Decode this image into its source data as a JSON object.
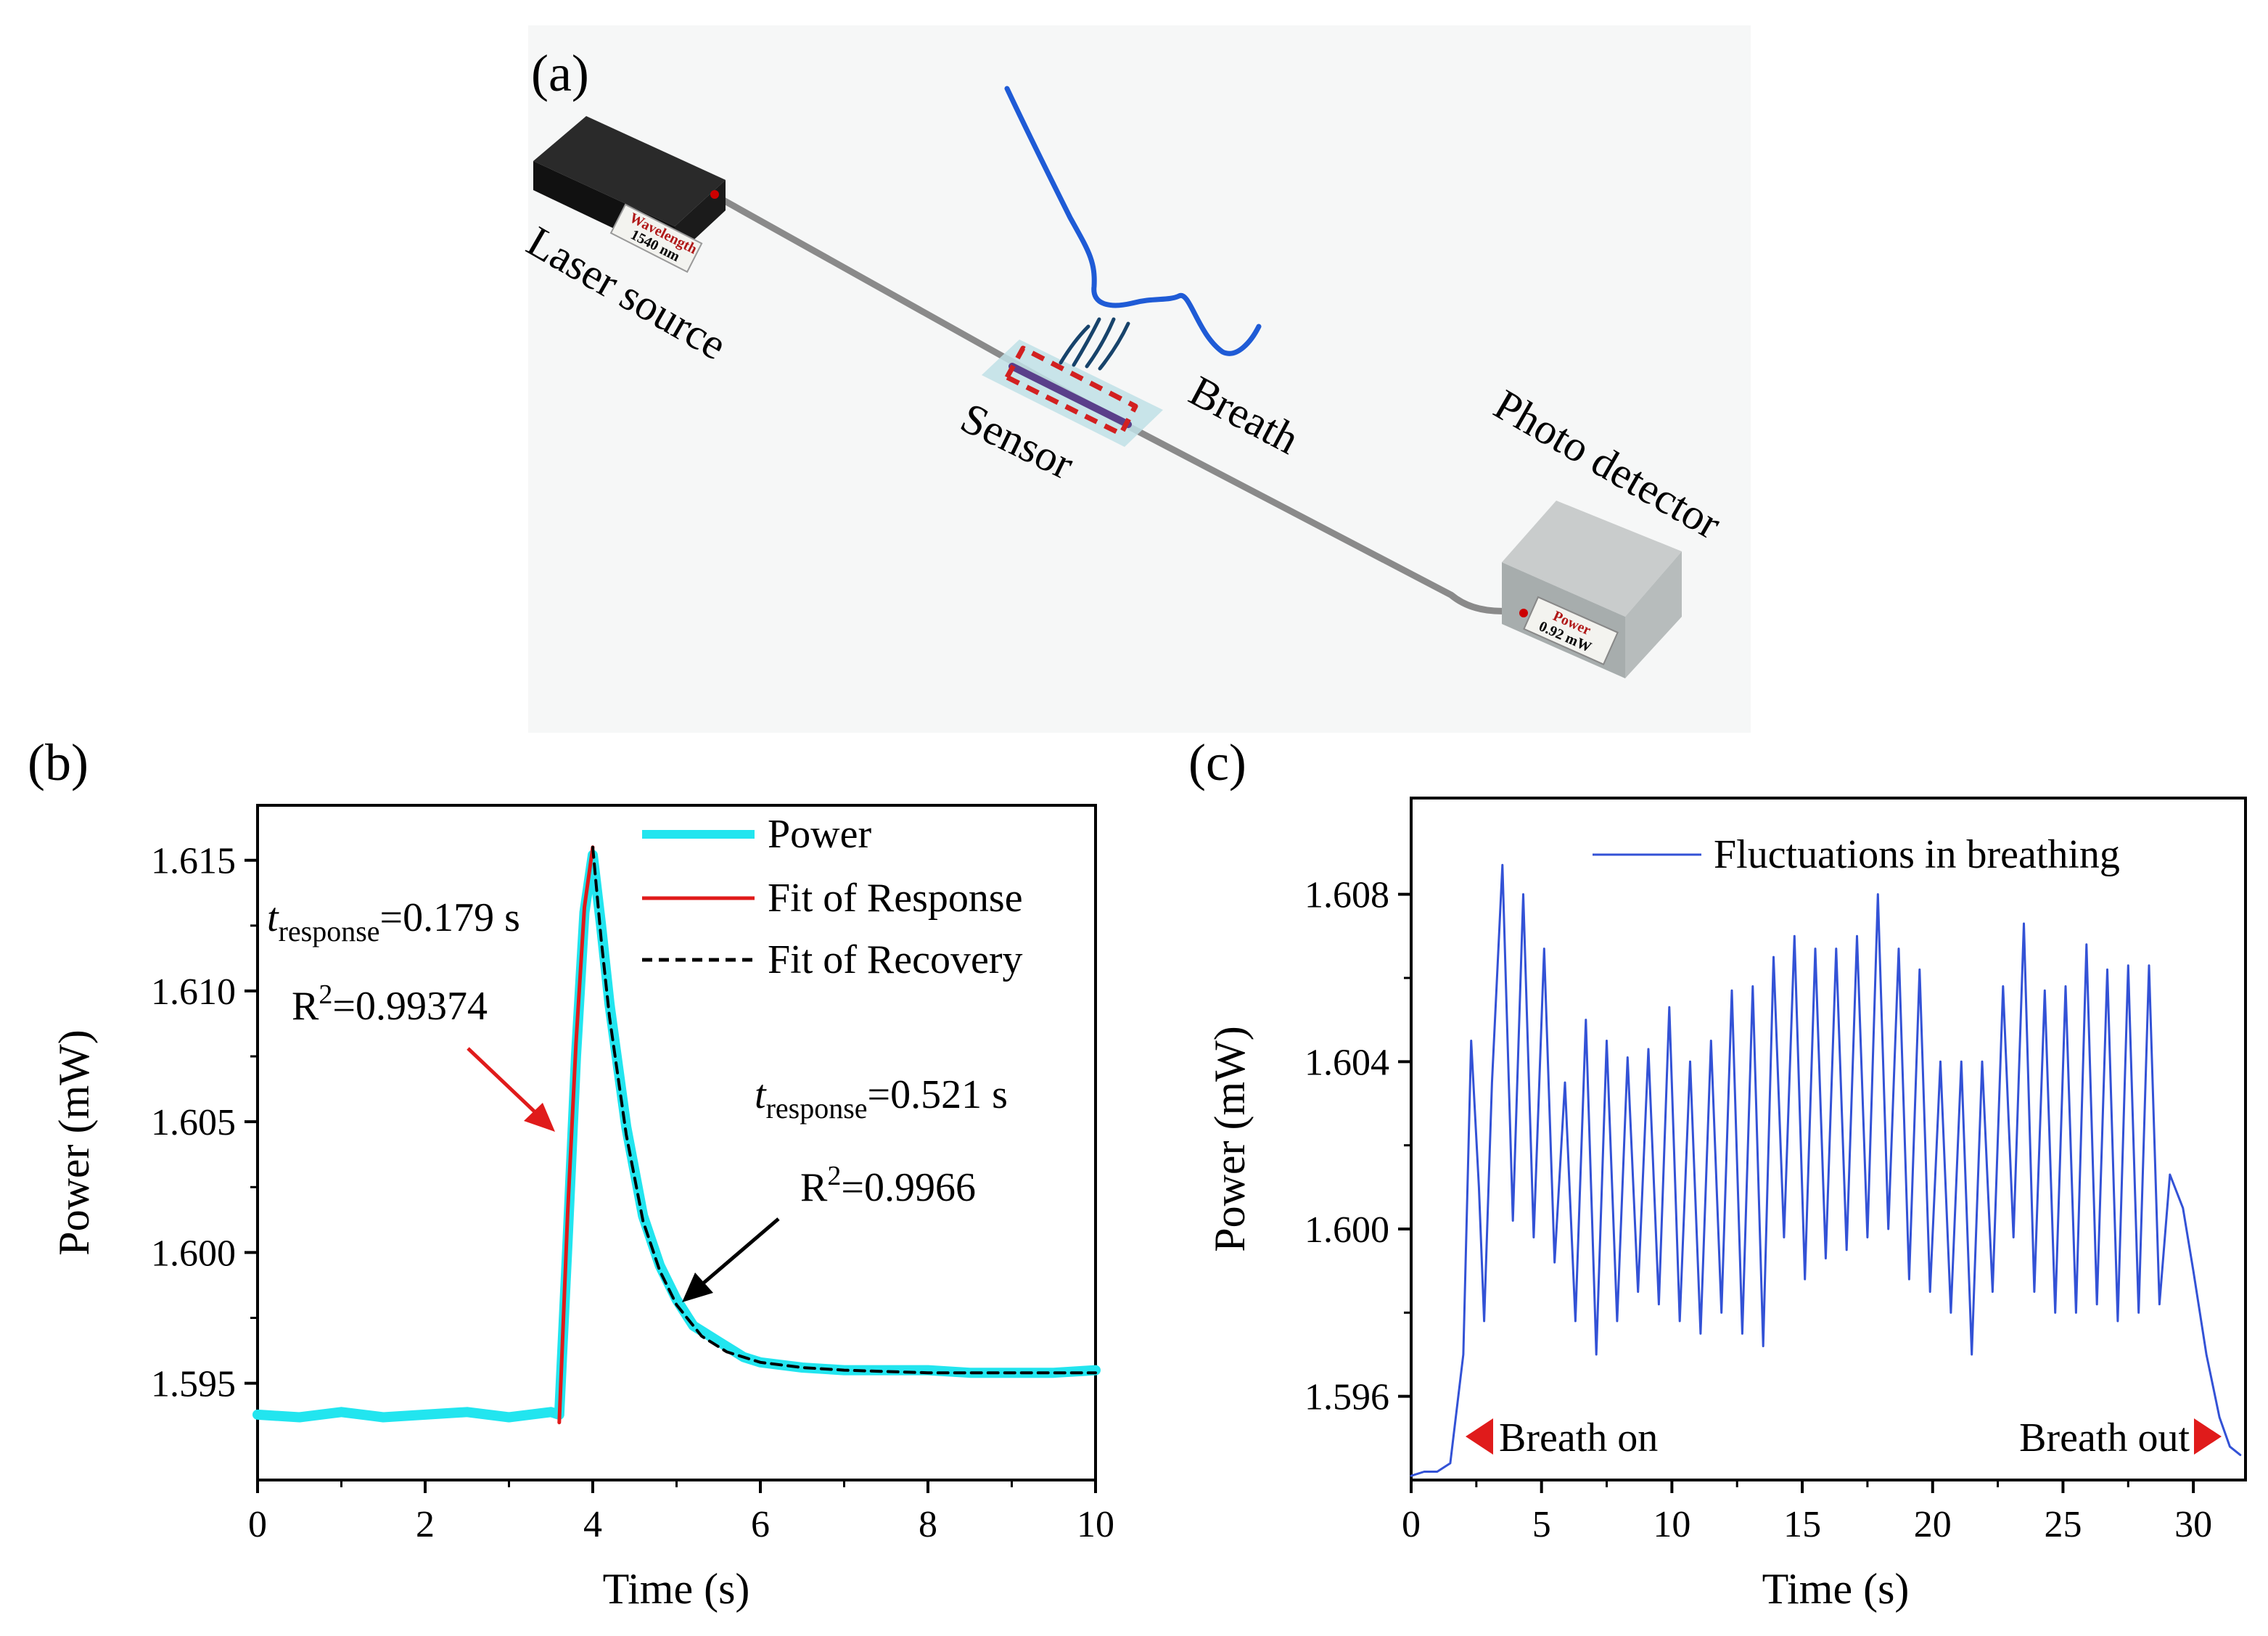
{
  "panel_a": {
    "label": "(a)",
    "laser_label": "Laser source",
    "laser_display_title": "Wavelength",
    "laser_display_value": "1540 nm",
    "sensor_label": "Sensor",
    "breath_label": "Breath",
    "detector_label": "Photo detector",
    "detector_display_title": "Power",
    "detector_display_value": "0.92 mW",
    "colors": {
      "fiber": "#8a8a8a",
      "breath_line": "#1f5bd6",
      "sensor_box": "#d22020",
      "background": "#f6f7f7"
    }
  },
  "chart_data": [
    {
      "id": "b",
      "panel_label": "(b)",
      "type": "line",
      "xlabel": "Time (s)",
      "ylabel": "Power (mW)",
      "xlim": [
        0,
        10
      ],
      "ylim": [
        1.5913,
        1.6171
      ],
      "xticks": [
        "0",
        "2",
        "4",
        "6",
        "8",
        "10"
      ],
      "yticks": [
        "1.595",
        "1.600",
        "1.605",
        "1.610",
        "1.615"
      ],
      "ytick_values": [
        1.595,
        1.6,
        1.605,
        1.61,
        1.615
      ],
      "xtick_values": [
        0,
        2,
        4,
        6,
        8,
        10
      ],
      "legend": [
        "Power",
        "Fit of Response",
        "Fit of Recovery"
      ],
      "series": [
        {
          "name": "Power",
          "color": "#22e5ef",
          "x": [
            0,
            0.5,
            1,
            1.5,
            2,
            2.5,
            3,
            3.5,
            3.6,
            3.7,
            3.8,
            3.9,
            4.0,
            4.1,
            4.2,
            4.4,
            4.6,
            4.8,
            5.0,
            5.2,
            5.5,
            5.8,
            6.0,
            6.5,
            7.0,
            7.5,
            8.0,
            8.5,
            9.0,
            9.5,
            10.0
          ],
          "y": [
            1.5938,
            1.5937,
            1.5939,
            1.5937,
            1.5938,
            1.5939,
            1.5937,
            1.5939,
            1.5938,
            1.6005,
            1.6075,
            1.613,
            1.6152,
            1.6125,
            1.6095,
            1.6048,
            1.6014,
            1.5995,
            1.5982,
            1.5972,
            1.5966,
            1.596,
            1.5958,
            1.5956,
            1.5955,
            1.5955,
            1.5955,
            1.5954,
            1.5954,
            1.5954,
            1.5955
          ]
        },
        {
          "name": "Fit of Response",
          "color": "#e01b1b",
          "x": [
            3.6,
            3.7,
            3.8,
            3.9,
            4.0
          ],
          "y": [
            1.5935,
            1.6015,
            1.608,
            1.6132,
            1.6155
          ]
        },
        {
          "name": "Fit of Recovery",
          "color": "#000000",
          "dashed": true,
          "x": [
            4.0,
            4.1,
            4.2,
            4.4,
            4.6,
            4.8,
            5.0,
            5.3,
            5.6,
            6.0,
            6.5,
            7.0,
            8.0,
            9.0,
            10.0
          ],
          "y": [
            1.6155,
            1.612,
            1.609,
            1.6045,
            1.6012,
            1.5993,
            1.598,
            1.5968,
            1.5962,
            1.5958,
            1.5956,
            1.5955,
            1.5954,
            1.5954,
            1.5954
          ]
        }
      ],
      "annotations": {
        "response_t_main": "t",
        "response_t_sub": "response",
        "response_t_value": "=0.179 s",
        "response_r2_main": "R",
        "response_r2_sup": "2",
        "response_r2_value": "=0.99374",
        "recovery_t_main": "t",
        "recovery_t_sub": "response",
        "recovery_t_value": "=0.521 s",
        "recovery_r2_main": "R",
        "recovery_r2_sup": "2",
        "recovery_r2_value": "=0.9966",
        "arrow_colors": [
          "#e01b1b",
          "#000000"
        ]
      }
    },
    {
      "id": "c",
      "panel_label": "(c)",
      "type": "line",
      "xlabel": "Time (s)",
      "ylabel": "Power (mW)",
      "xlim": [
        0,
        32
      ],
      "ylim": [
        1.594,
        1.6103
      ],
      "xticks": [
        "0",
        "5",
        "10",
        "15",
        "20",
        "25",
        "30"
      ],
      "xtick_values": [
        0,
        5,
        10,
        15,
        20,
        25,
        30
      ],
      "yticks": [
        "1.596",
        "1.600",
        "1.604",
        "1.608"
      ],
      "ytick_values": [
        1.596,
        1.6,
        1.604,
        1.608
      ],
      "legend": [
        "Fluctuations in breathing"
      ],
      "series": [
        {
          "name": "Fluctuations in breathing",
          "color": "#3352d6",
          "x": [
            0,
            0.5,
            1.0,
            1.5,
            2.0,
            2.3,
            2.6,
            2.8,
            3.1,
            3.5,
            3.9,
            4.3,
            4.7,
            5.1,
            5.5,
            5.9,
            6.3,
            6.7,
            7.1,
            7.5,
            7.9,
            8.3,
            8.7,
            9.1,
            9.5,
            9.9,
            10.3,
            10.7,
            11.1,
            11.5,
            11.9,
            12.3,
            12.7,
            13.1,
            13.5,
            13.9,
            14.3,
            14.7,
            15.1,
            15.5,
            15.9,
            16.3,
            16.7,
            17.1,
            17.5,
            17.9,
            18.3,
            18.7,
            19.1,
            19.5,
            19.9,
            20.3,
            20.7,
            21.1,
            21.5,
            21.9,
            22.3,
            22.7,
            23.1,
            23.5,
            23.9,
            24.3,
            24.7,
            25.1,
            25.5,
            25.9,
            26.3,
            26.7,
            27.1,
            27.5,
            27.9,
            28.3,
            28.7,
            29.1,
            29.6,
            30.0,
            30.5,
            31.0,
            31.4,
            31.8
          ],
          "y": [
            1.5941,
            1.5942,
            1.5942,
            1.5944,
            1.597,
            1.6045,
            1.601,
            1.5978,
            1.6035,
            1.6087,
            1.6002,
            1.608,
            1.5998,
            1.6067,
            1.5992,
            1.6035,
            1.5978,
            1.605,
            1.597,
            1.6045,
            1.5978,
            1.6041,
            1.5985,
            1.6043,
            1.5982,
            1.6053,
            1.5978,
            1.604,
            1.5975,
            1.6045,
            1.598,
            1.6057,
            1.5975,
            1.6058,
            1.5972,
            1.6065,
            1.5998,
            1.607,
            1.5988,
            1.6067,
            1.5993,
            1.6067,
            1.5995,
            1.607,
            1.5998,
            1.608,
            1.6,
            1.6067,
            1.5988,
            1.6062,
            1.5985,
            1.604,
            1.598,
            1.604,
            1.597,
            1.604,
            1.5985,
            1.6058,
            1.5998,
            1.6073,
            1.5985,
            1.6057,
            1.598,
            1.6058,
            1.598,
            1.6068,
            1.5982,
            1.6062,
            1.5978,
            1.6063,
            1.598,
            1.6063,
            1.5982,
            1.6013,
            1.6005,
            1.599,
            1.597,
            1.5955,
            1.5948,
            1.5946
          ]
        }
      ],
      "annotations": {
        "breath_on": "Breath on",
        "breath_out": "Breath out",
        "marker_color": "#e01b1b"
      }
    }
  ]
}
